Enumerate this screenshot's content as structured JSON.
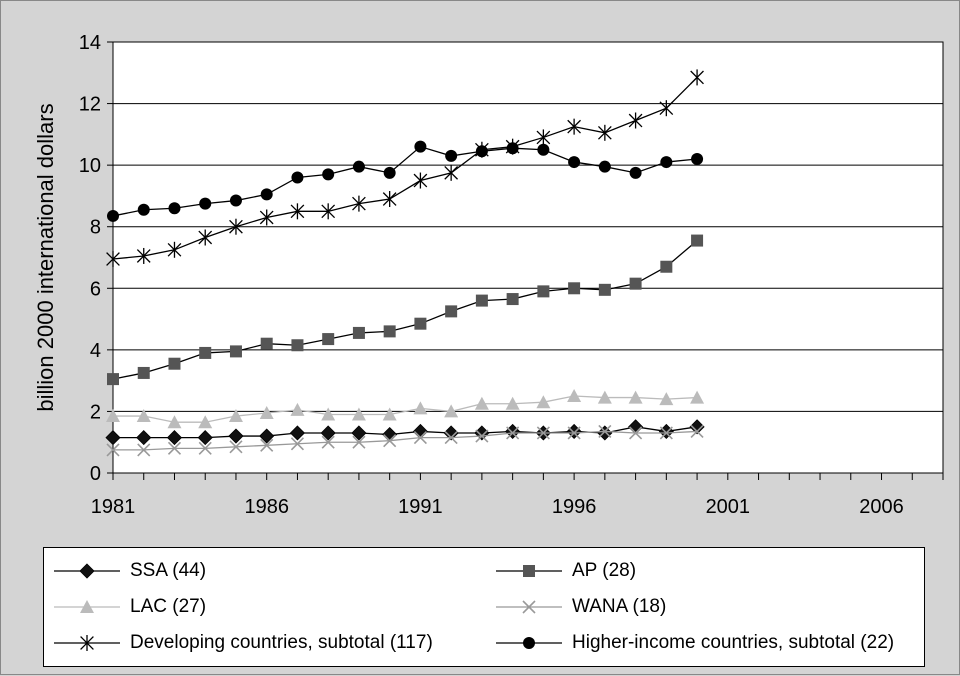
{
  "chart_data": {
    "type": "line",
    "title": "",
    "xlabel": "",
    "ylabel": "billion 2000 international dollars",
    "xlim": [
      1981,
      2008
    ],
    "ylim": [
      0,
      14
    ],
    "x_ticks": [
      "1981",
      "1986",
      "1991",
      "1996",
      "2001",
      "2006"
    ],
    "y_ticks": [
      "0",
      "2",
      "4",
      "6",
      "8",
      "10",
      "12",
      "14"
    ],
    "grid": "horizontal",
    "legend_position": "bottom",
    "x": [
      1981,
      1982,
      1983,
      1984,
      1985,
      1986,
      1987,
      1988,
      1989,
      1990,
      1991,
      1992,
      1993,
      1994,
      1995,
      1996,
      1997,
      1998,
      1999,
      2000
    ],
    "series": [
      {
        "name": "SSA (44)",
        "marker": "diamond",
        "color": "#000000",
        "marker_color": "#111111",
        "values": [
          1.15,
          1.15,
          1.15,
          1.15,
          1.2,
          1.2,
          1.3,
          1.3,
          1.3,
          1.25,
          1.35,
          1.3,
          1.3,
          1.35,
          1.3,
          1.35,
          1.3,
          1.5,
          1.35,
          1.5
        ]
      },
      {
        "name": "AP (28)",
        "marker": "square",
        "color": "#000000",
        "marker_color": "#555555",
        "values": [
          3.05,
          3.25,
          3.55,
          3.9,
          3.95,
          4.2,
          4.15,
          4.35,
          4.55,
          4.6,
          4.85,
          5.25,
          5.6,
          5.65,
          5.9,
          6.0,
          5.95,
          6.15,
          6.7,
          7.55
        ]
      },
      {
        "name": "LAC (27)",
        "marker": "triangle",
        "color": "#bbbbbb",
        "marker_color": "#bbbbbb",
        "values": [
          1.85,
          1.85,
          1.65,
          1.65,
          1.85,
          1.95,
          2.05,
          1.9,
          1.9,
          1.9,
          2.1,
          2.0,
          2.25,
          2.25,
          2.3,
          2.5,
          2.45,
          2.45,
          2.4,
          2.45
        ]
      },
      {
        "name": "WANA (18)",
        "marker": "x",
        "color": "#999999",
        "marker_color": "#999999",
        "values": [
          0.75,
          0.75,
          0.8,
          0.8,
          0.85,
          0.9,
          0.95,
          1.0,
          1.0,
          1.05,
          1.15,
          1.15,
          1.2,
          1.3,
          1.3,
          1.3,
          1.35,
          1.3,
          1.3,
          1.35
        ]
      },
      {
        "name": "Developing countries, subtotal (117)",
        "marker": "asterisk",
        "color": "#000000",
        "marker_color": "#000000",
        "values": [
          6.95,
          7.05,
          7.25,
          7.65,
          8.0,
          8.3,
          8.5,
          8.5,
          8.75,
          8.9,
          9.5,
          9.75,
          10.5,
          10.6,
          10.9,
          11.25,
          11.05,
          11.45,
          11.85,
          12.85
        ]
      },
      {
        "name": "Higher-income countries, subtotal (22)",
        "marker": "circle",
        "color": "#000000",
        "marker_color": "#000000",
        "values": [
          8.35,
          8.55,
          8.6,
          8.75,
          8.85,
          9.05,
          9.6,
          9.7,
          9.95,
          9.75,
          10.6,
          10.3,
          10.45,
          10.55,
          10.5,
          10.1,
          9.95,
          9.75,
          10.1,
          10.2
        ]
      }
    ]
  }
}
